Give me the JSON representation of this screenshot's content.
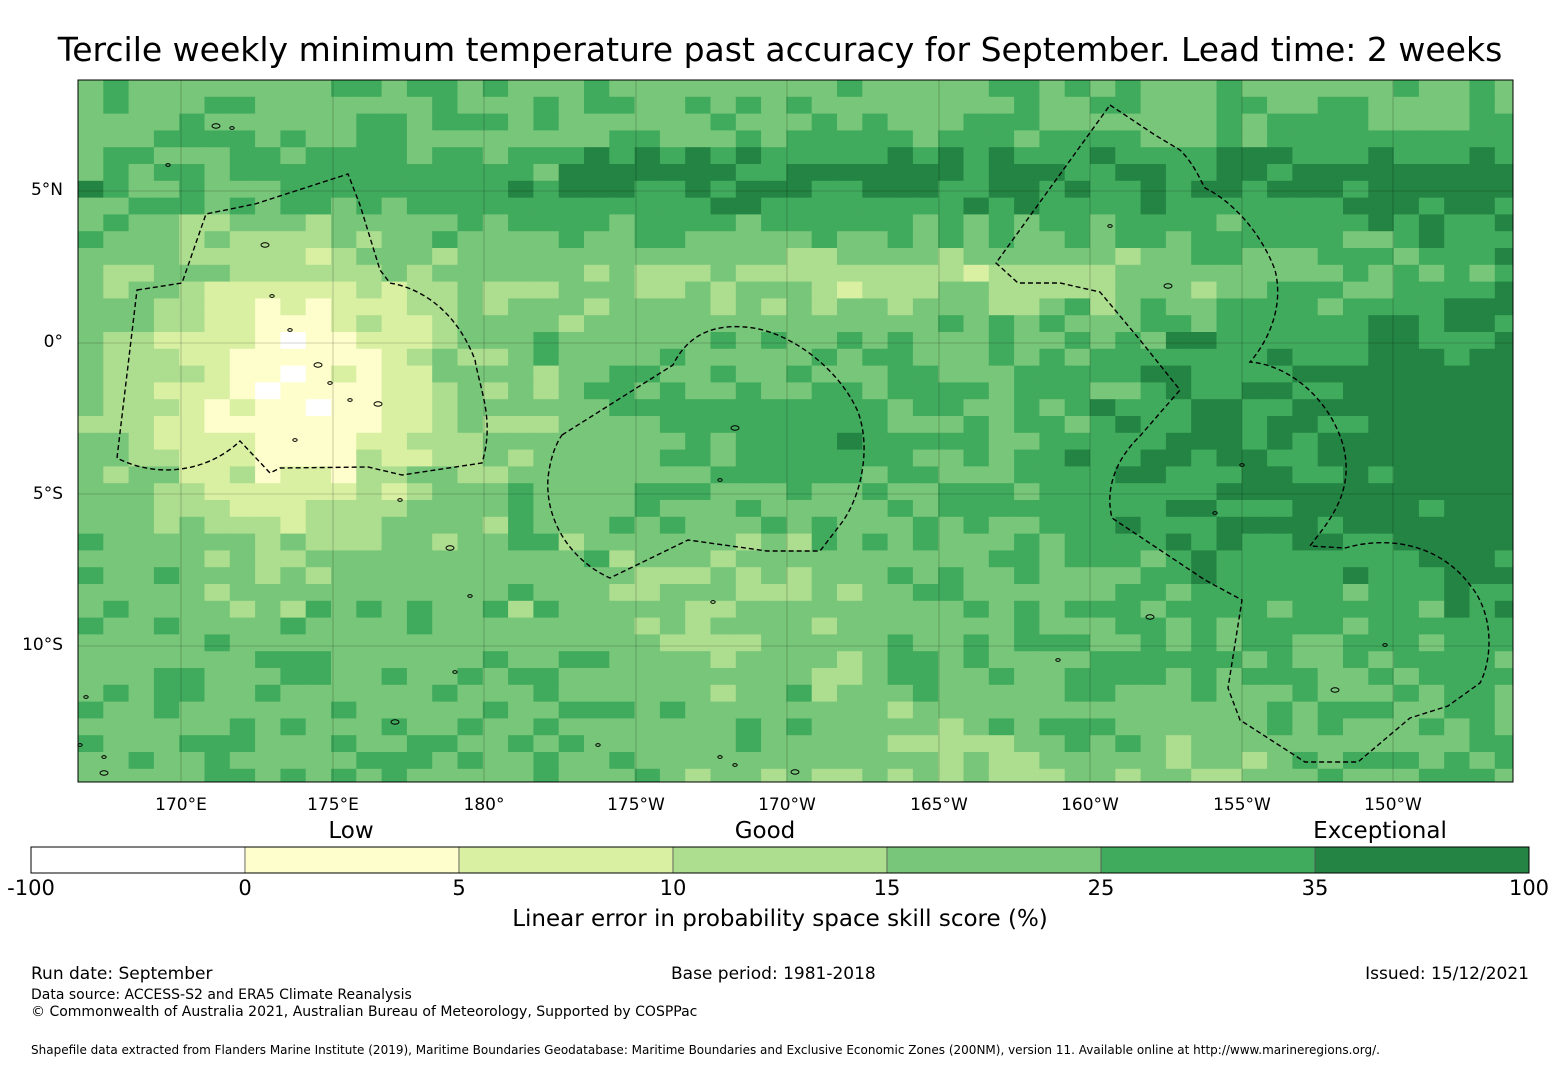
{
  "title": "Tercile weekly minimum temperature past accuracy for September. Lead time: 2 weeks",
  "map": {
    "lat_labels": [
      "5°N",
      "0°",
      "5°S",
      "10°S"
    ],
    "lon_labels": [
      "170°E",
      "175°E",
      "180°",
      "175°W",
      "170°W",
      "165°W",
      "160°W",
      "155°W",
      "150°W"
    ],
    "boundary_style": "dashed-black"
  },
  "colorbar": {
    "category_labels": [
      "Low",
      "Good",
      "Exceptional"
    ],
    "tick_labels": [
      "-100",
      "0",
      "5",
      "10",
      "15",
      "25",
      "35",
      "100"
    ],
    "colors": [
      "#ffffff",
      "#fefecc",
      "#d9f0a3",
      "#addd8e",
      "#78c679",
      "#41ab5d",
      "#238443"
    ],
    "title": "Linear error in probability space skill score (%)"
  },
  "footer": {
    "run_date": "Run date: September",
    "base_period": "Base period: 1981-2018",
    "issued": "Issued: 15/12/2021",
    "data_source": "Data source: ACCESS-S2 and ERA5 Climate Reanalysis",
    "copyright": "© Commonwealth of Australia 2021, Australian Bureau of Meteorology, Supported by COSPPac",
    "shapefile": "Shapefile data extracted from Flanders Marine Institute (2019), Maritime Boundaries Geodatabase: Maritime Boundaries and Exclusive Economic Zones (200NM), version 11. Available online at http://www.marineregions.org/."
  }
}
